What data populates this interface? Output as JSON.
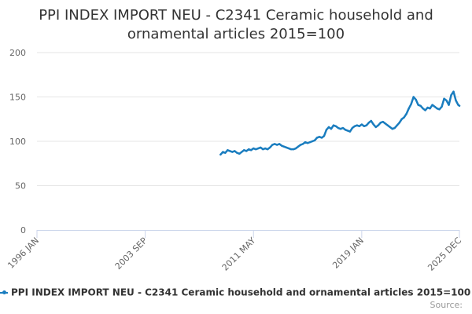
{
  "title_lines": [
    "PPI INDEX IMPORT NEU - C2341 Ceramic household and",
    "ornamental articles 2015=100"
  ],
  "legend_label": "PPI INDEX IMPORT NEU - C2341 Ceramic household and ornamental articles 2015=100",
  "credits": "Source:",
  "colors": {
    "series": "#1a7dbf",
    "grid": "#e6e6e6",
    "axis": "#ccd6eb"
  },
  "chart_data": {
    "type": "line",
    "title": "PPI INDEX IMPORT NEU - C2341 Ceramic household and ornamental articles 2015=100",
    "xlabel": "",
    "ylabel": "",
    "x_range": [
      "1996-01",
      "2025-12"
    ],
    "ylim": [
      0,
      200
    ],
    "y_ticks": [
      0,
      50,
      100,
      150,
      200
    ],
    "x_ticks": [
      {
        "date": "1996-01",
        "label": "1996 JAN"
      },
      {
        "date": "2003-09",
        "label": "2003 SEP"
      },
      {
        "date": "2011-05",
        "label": "2011 MAY"
      },
      {
        "date": "2019-01",
        "label": "2019 JAN"
      },
      {
        "date": "2025-12",
        "label": "2025 DEC"
      }
    ],
    "grid": true,
    "legend_position": "bottom",
    "series": [
      {
        "name": "PPI INDEX IMPORT NEU - C2341 Ceramic household and ornamental articles 2015=100",
        "points": [
          [
            "2009-01",
            85
          ],
          [
            "2009-03",
            88
          ],
          [
            "2009-05",
            87
          ],
          [
            "2009-07",
            90
          ],
          [
            "2009-09",
            89
          ],
          [
            "2009-11",
            88
          ],
          [
            "2010-01",
            89
          ],
          [
            "2010-03",
            87
          ],
          [
            "2010-05",
            86
          ],
          [
            "2010-07",
            88
          ],
          [
            "2010-09",
            90
          ],
          [
            "2010-11",
            89
          ],
          [
            "2011-01",
            91
          ],
          [
            "2011-03",
            90
          ],
          [
            "2011-05",
            92
          ],
          [
            "2011-07",
            91
          ],
          [
            "2011-09",
            92
          ],
          [
            "2011-11",
            93
          ],
          [
            "2012-01",
            91
          ],
          [
            "2012-03",
            92
          ],
          [
            "2012-05",
            91
          ],
          [
            "2012-07",
            93
          ],
          [
            "2012-09",
            96
          ],
          [
            "2012-11",
            97
          ],
          [
            "2013-01",
            96
          ],
          [
            "2013-03",
            97
          ],
          [
            "2013-05",
            95
          ],
          [
            "2013-07",
            94
          ],
          [
            "2013-09",
            93
          ],
          [
            "2013-11",
            92
          ],
          [
            "2014-01",
            91
          ],
          [
            "2014-03",
            91
          ],
          [
            "2014-05",
            92
          ],
          [
            "2014-07",
            94
          ],
          [
            "2014-09",
            96
          ],
          [
            "2014-11",
            97
          ],
          [
            "2015-01",
            99
          ],
          [
            "2015-03",
            98
          ],
          [
            "2015-05",
            99
          ],
          [
            "2015-07",
            100
          ],
          [
            "2015-09",
            101
          ],
          [
            "2015-11",
            104
          ],
          [
            "2016-01",
            105
          ],
          [
            "2016-03",
            104
          ],
          [
            "2016-05",
            106
          ],
          [
            "2016-07",
            113
          ],
          [
            "2016-09",
            116
          ],
          [
            "2016-11",
            114
          ],
          [
            "2017-01",
            118
          ],
          [
            "2017-03",
            117
          ],
          [
            "2017-05",
            115
          ],
          [
            "2017-07",
            114
          ],
          [
            "2017-09",
            115
          ],
          [
            "2017-11",
            113
          ],
          [
            "2018-01",
            112
          ],
          [
            "2018-03",
            111
          ],
          [
            "2018-05",
            115
          ],
          [
            "2018-07",
            117
          ],
          [
            "2018-09",
            118
          ],
          [
            "2018-11",
            117
          ],
          [
            "2019-01",
            119
          ],
          [
            "2019-03",
            117
          ],
          [
            "2019-05",
            118
          ],
          [
            "2019-07",
            121
          ],
          [
            "2019-09",
            123
          ],
          [
            "2019-11",
            119
          ],
          [
            "2020-01",
            116
          ],
          [
            "2020-03",
            118
          ],
          [
            "2020-05",
            121
          ],
          [
            "2020-07",
            122
          ],
          [
            "2020-09",
            120
          ],
          [
            "2020-11",
            118
          ],
          [
            "2021-01",
            116
          ],
          [
            "2021-03",
            114
          ],
          [
            "2021-05",
            115
          ],
          [
            "2021-07",
            118
          ],
          [
            "2021-09",
            121
          ],
          [
            "2021-11",
            125
          ],
          [
            "2022-01",
            127
          ],
          [
            "2022-03",
            131
          ],
          [
            "2022-05",
            137
          ],
          [
            "2022-07",
            142
          ],
          [
            "2022-09",
            150
          ],
          [
            "2022-11",
            147
          ],
          [
            "2023-01",
            141
          ],
          [
            "2023-03",
            140
          ],
          [
            "2023-05",
            137
          ],
          [
            "2023-07",
            135
          ],
          [
            "2023-09",
            138
          ],
          [
            "2023-11",
            137
          ],
          [
            "2024-01",
            141
          ],
          [
            "2024-03",
            139
          ],
          [
            "2024-05",
            137
          ],
          [
            "2024-07",
            136
          ],
          [
            "2024-09",
            139
          ],
          [
            "2024-11",
            148
          ],
          [
            "2025-01",
            146
          ],
          [
            "2025-03",
            141
          ],
          [
            "2025-05",
            152
          ],
          [
            "2025-07",
            156
          ],
          [
            "2025-09",
            146
          ],
          [
            "2025-11",
            141
          ],
          [
            "2025-12",
            140
          ]
        ]
      }
    ]
  }
}
